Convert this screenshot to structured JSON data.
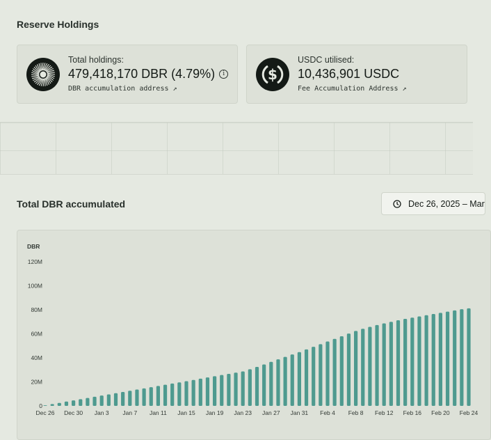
{
  "reserve": {
    "title": "Reserve Holdings",
    "total": {
      "label": "Total holdings:",
      "value": "479,418,170 DBR (4.79%)",
      "link": "DBR accumulation address ↗"
    },
    "usdc": {
      "label": "USDC utilised:",
      "value": "10,436,901 USDC",
      "link": "Fee Accumulation Address ↗"
    }
  },
  "accumulated": {
    "title": "Total DBR accumulated",
    "date_range": "Dec 26, 2025 – Mar"
  },
  "colors": {
    "bar": "#4e9a8f",
    "background": "#e5e9e1",
    "panel": "#dde1d8"
  },
  "icons": {
    "date": "clock-icon",
    "info": "info-icon",
    "total": "dbr-logo-icon",
    "usdc": "usdc-logo-icon"
  },
  "chart_data": {
    "type": "bar",
    "ylabel": "DBR",
    "ylim": [
      0,
      120
    ],
    "yunit": "M",
    "yticks": [
      "0",
      "20M",
      "40M",
      "60M",
      "80M",
      "100M",
      "120M"
    ],
    "tick_labels": [
      "Dec 26",
      "Dec 30",
      "Jan 3",
      "Jan 7",
      "Jan 11",
      "Jan 15",
      "Jan 19",
      "Jan 23",
      "Jan 27",
      "Jan 31",
      "Feb 4",
      "Feb 8",
      "Feb 12",
      "Feb 16",
      "Feb 20",
      "Feb 24"
    ],
    "categories": [
      "Dec 26",
      "Dec 27",
      "Dec 28",
      "Dec 29",
      "Dec 30",
      "Dec 31",
      "Jan 1",
      "Jan 2",
      "Jan 3",
      "Jan 4",
      "Jan 5",
      "Jan 6",
      "Jan 7",
      "Jan 8",
      "Jan 9",
      "Jan 10",
      "Jan 11",
      "Jan 12",
      "Jan 13",
      "Jan 14",
      "Jan 15",
      "Jan 16",
      "Jan 17",
      "Jan 18",
      "Jan 19",
      "Jan 20",
      "Jan 21",
      "Jan 22",
      "Jan 23",
      "Jan 24",
      "Jan 25",
      "Jan 26",
      "Jan 27",
      "Jan 28",
      "Jan 29",
      "Jan 30",
      "Jan 31",
      "Feb 1",
      "Feb 2",
      "Feb 3",
      "Feb 4",
      "Feb 5",
      "Feb 6",
      "Feb 7",
      "Feb 8",
      "Feb 9",
      "Feb 10",
      "Feb 11",
      "Feb 12",
      "Feb 13",
      "Feb 14",
      "Feb 15",
      "Feb 16",
      "Feb 17",
      "Feb 18",
      "Feb 19",
      "Feb 20",
      "Feb 21",
      "Feb 22",
      "Feb 23",
      "Feb 24"
    ],
    "values": [
      0.5,
      1.5,
      2.5,
      3.6,
      4.6,
      5.6,
      6.6,
      7.6,
      8.6,
      9.6,
      10.6,
      11.6,
      12.6,
      13.6,
      14.6,
      15.6,
      16.6,
      17.6,
      18.6,
      19.6,
      20.6,
      21.6,
      22.7,
      23.7,
      24.7,
      25.7,
      26.7,
      27.7,
      28.7,
      30.5,
      32.5,
      34.5,
      36.7,
      38.8,
      40.8,
      42.8,
      44.8,
      47.0,
      49.2,
      51.4,
      53.6,
      55.8,
      58.0,
      60.2,
      62.4,
      64.2,
      65.8,
      67.3,
      68.7,
      70.0,
      71.3,
      72.5,
      73.5,
      74.5,
      75.5,
      76.5,
      77.5,
      78.5,
      79.5,
      80.5,
      81.2
    ]
  }
}
